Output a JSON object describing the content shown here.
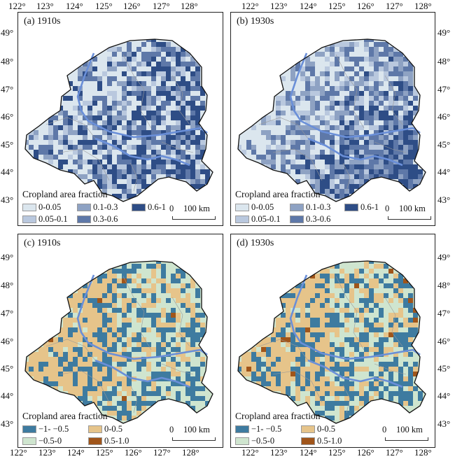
{
  "axes": {
    "lon_labels": [
      "122°",
      "123°",
      "124°",
      "125°",
      "126°",
      "127°",
      "128°"
    ],
    "lat_labels": [
      "49°",
      "48°",
      "47°",
      "46°",
      "45°",
      "44°",
      "43°"
    ]
  },
  "panels": [
    {
      "label": "(a) 1910s",
      "type": "fraction",
      "seed": 11,
      "density": 0.42
    },
    {
      "label": "(b) 1930s",
      "type": "fraction",
      "seed": 23,
      "density": 0.58
    },
    {
      "label": "(c) 1910s",
      "type": "change",
      "seed": 37,
      "density": 0.35
    },
    {
      "label": "(d) 1930s",
      "type": "change",
      "seed": 53,
      "density": 0.45
    }
  ],
  "legend_fraction": {
    "title": "Cropland area fraction",
    "row1": [
      {
        "label": "0-0.05",
        "color": "#dbe6ee"
      },
      {
        "label": "0.1-0.3",
        "color": "#8ea2c3"
      },
      {
        "label": "0.6-1",
        "color": "#2e4d86"
      }
    ],
    "row2": [
      {
        "label": "0.05-0.1",
        "color": "#b9c8de"
      },
      {
        "label": "0.3-0.6",
        "color": "#5e78a8"
      }
    ]
  },
  "legend_change": {
    "title": "Cropland area fraction",
    "row1": [
      {
        "label": "−1- −0.5",
        "color": "#3e7ba0"
      },
      {
        "label": "0-0.5",
        "color": "#e6c48a"
      }
    ],
    "row2": [
      {
        "label": "−0.5-0",
        "color": "#cfe5cf"
      },
      {
        "label": "0.5-1.0",
        "color": "#a0551a"
      }
    ]
  },
  "scale_bar": {
    "zero": "0",
    "value": "100 km"
  },
  "colors": {
    "river": "#6a8fd8",
    "border": "#111",
    "inner_line": "#9a9a9a"
  }
}
